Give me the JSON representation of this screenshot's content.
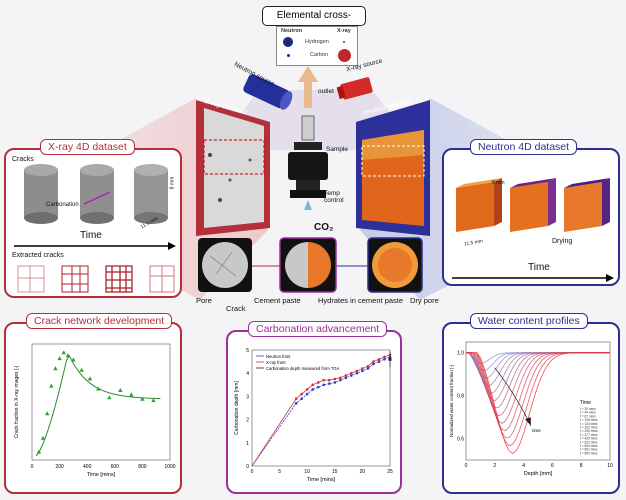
{
  "colors": {
    "xray": "#b3303a",
    "neutron": "#2d2f8f",
    "carbonation": "#9b2f9b",
    "crack": "#b3303a",
    "water": "#2d2f8f"
  },
  "elemental": {
    "title": "Elemental cross-sections",
    "col_neutron": "Neutron",
    "col_xray": "X-ray",
    "row1": "Hydrogen",
    "row2": "Carbon"
  },
  "setup": {
    "neutron_source": "Neutron source",
    "xray_source": "X-ray source",
    "outlet": "outlet",
    "xray_detector": "X-ray detector",
    "neutron_detector": "neutron detector",
    "sample": "Sample",
    "temp_control": "Temp control",
    "co2": "CO₂"
  },
  "xray_panel": {
    "title": "X-ray 4D dataset",
    "cracks": "Cracks",
    "carbonation": "Carbonation",
    "time": "Time",
    "extracted": "Extracted cracks",
    "dim_h": "8 mm",
    "dim_w": "11.5 mm"
  },
  "neutron_panel": {
    "title": "Neutron 4D dataset",
    "dim_h": "8 mm",
    "dim_w": "11.5 mm",
    "drying": "Drying",
    "time": "Time"
  },
  "circles": {
    "pore": "Pore",
    "crack": "Crack",
    "cement_paste": "Cement paste",
    "hydrates": "Hydrates in cement paste",
    "dry_pore": "Dry pore"
  },
  "crack_panel": {
    "title": "Crack network development",
    "xlabel": "Time [mins]",
    "ylabel": "Crack fraction in X-ray images [-]",
    "xticks": [
      "0",
      "200",
      "400",
      "600",
      "800",
      "1000"
    ]
  },
  "carb_panel": {
    "title": "Carbonation advancement",
    "xlabel": "Time [mins]",
    "ylabel": "Carbonation depth [mm]",
    "legend": [
      "Neutron front",
      "X-ray front",
      "Carbonation depth measured from TGA"
    ],
    "xticks": [
      "0",
      "5",
      "10",
      "15",
      "20",
      "25"
    ],
    "yticks": [
      "0",
      "1",
      "2",
      "3",
      "4",
      "5"
    ]
  },
  "water_panel": {
    "title": "Water content profiles",
    "xlabel": "Depth [mm]",
    "ylabel": "Normalized water content fraction [-]",
    "legend_title": "Time",
    "xticks": [
      "0",
      "2",
      "4",
      "6",
      "8",
      "10"
    ],
    "yticks": [
      "0.6",
      "0.8",
      "1.0"
    ],
    "arrow_label": "time",
    "legend": [
      "t = 20 mins",
      "t = 44 mins",
      "t = 67 mins",
      "t = 105 mins",
      "t = 133 mins",
      "t = 202 mins",
      "t = 250 mins",
      "t = 377 mins",
      "t = 430 mins",
      "t = 522 mins",
      "t = 544 mins",
      "t = 561 mins",
      "t = 590 mins"
    ]
  },
  "chart_data": [
    {
      "type": "scatter",
      "title": "Crack network development",
      "xlabel": "Time [mins]",
      "ylabel": "Crack fraction in X-ray images [-]",
      "xlim": [
        0,
        1000
      ],
      "series": [
        {
          "x": [
            50,
            80,
            110,
            140,
            170,
            200,
            230,
            260,
            300,
            360,
            420,
            480,
            560,
            640,
            720,
            800,
            880
          ],
          "y": [
            0.55,
            1.5,
            3.2,
            5.1,
            6.3,
            7.0,
            7.4,
            7.2,
            6.9,
            6.2,
            5.6,
            4.9,
            4.3,
            4.8,
            4.5,
            4.2,
            4.1
          ]
        }
      ]
    },
    {
      "type": "line",
      "title": "Carbonation advancement",
      "xlabel": "Time [mins]",
      "ylabel": "Carbonation depth [mm]",
      "xlim": [
        0,
        25
      ],
      "ylim": [
        0,
        5
      ],
      "series": [
        {
          "name": "Neutron front",
          "x": [
            0,
            8,
            9,
            10,
            11,
            12,
            13,
            14,
            15,
            16,
            17,
            18,
            19,
            20,
            21,
            22,
            23,
            24,
            25
          ],
          "y": [
            0,
            2.7,
            2.9,
            3.1,
            3.3,
            3.4,
            3.5,
            3.55,
            3.6,
            3.7,
            3.8,
            3.9,
            4.0,
            4.1,
            4.2,
            4.4,
            4.5,
            4.6,
            4.7
          ]
        },
        {
          "name": "X-ray front",
          "x": [
            0,
            8,
            9,
            10,
            11,
            12,
            13,
            14,
            15,
            16,
            17,
            18,
            19,
            20,
            21,
            22,
            23,
            24,
            25
          ],
          "y": [
            0,
            2.9,
            3.1,
            3.3,
            3.5,
            3.6,
            3.7,
            3.7,
            3.75,
            3.8,
            3.9,
            4.0,
            4.1,
            4.2,
            4.3,
            4.5,
            4.6,
            4.7,
            4.8
          ]
        },
        {
          "name": "Carbonation depth measured from TGA",
          "x": [
            25
          ],
          "y": [
            4.6
          ]
        }
      ]
    },
    {
      "type": "line",
      "title": "Water content profiles",
      "xlabel": "Depth [mm]",
      "ylabel": "Normalized water content fraction [-]",
      "xlim": [
        0,
        10
      ],
      "ylim": [
        0.5,
        1.05
      ]
    }
  ]
}
